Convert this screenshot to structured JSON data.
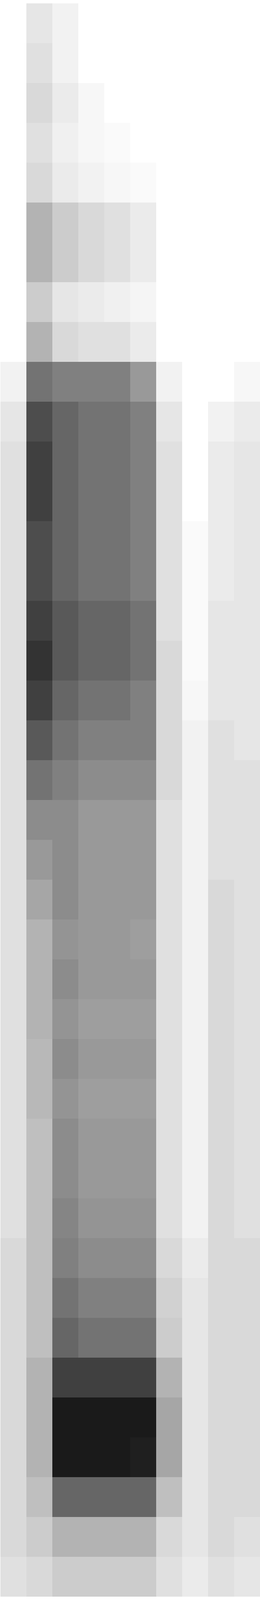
{
  "chart_data": {
    "type": "heatmap",
    "tick_labels": false,
    "value_range": [
      0,
      1
    ],
    "cells": [
      [
        0,
        0.1,
        0.05,
        0,
        0,
        0,
        0,
        0,
        0,
        0
      ],
      [
        0,
        0.12,
        0.05,
        0,
        0,
        0,
        0,
        0,
        0,
        0
      ],
      [
        0,
        0.15,
        0.08,
        0.03,
        0,
        0,
        0,
        0,
        0,
        0
      ],
      [
        0,
        0.12,
        0.06,
        0.03,
        0.02,
        0,
        0,
        0,
        0,
        0
      ],
      [
        0,
        0.15,
        0.08,
        0.05,
        0.03,
        0.02,
        0,
        0,
        0,
        0
      ],
      [
        0,
        0.3,
        0.2,
        0.15,
        0.12,
        0.08,
        0,
        0,
        0,
        0
      ],
      [
        0,
        0.3,
        0.2,
        0.15,
        0.12,
        0.08,
        0,
        0,
        0,
        0
      ],
      [
        0,
        0.2,
        0.1,
        0.08,
        0.06,
        0.04,
        0,
        0,
        0,
        0
      ],
      [
        0,
        0.3,
        0.15,
        0.12,
        0.12,
        0.08,
        0,
        0,
        0,
        0
      ],
      [
        0.05,
        0.55,
        0.5,
        0.5,
        0.5,
        0.4,
        0.05,
        0,
        0,
        0.03
      ],
      [
        0.1,
        0.7,
        0.6,
        0.55,
        0.55,
        0.5,
        0.1,
        0,
        0.05,
        0.08
      ],
      [
        0.12,
        0.75,
        0.6,
        0.55,
        0.55,
        0.5,
        0.12,
        0,
        0.08,
        0.1
      ],
      [
        0.12,
        0.75,
        0.6,
        0.55,
        0.55,
        0.5,
        0.12,
        0,
        0.08,
        0.1
      ],
      [
        0.12,
        0.7,
        0.6,
        0.55,
        0.55,
        0.5,
        0.12,
        0.02,
        0.08,
        0.1
      ],
      [
        0.12,
        0.7,
        0.6,
        0.55,
        0.55,
        0.5,
        0.12,
        0.02,
        0.08,
        0.1
      ],
      [
        0.12,
        0.75,
        0.65,
        0.6,
        0.6,
        0.55,
        0.12,
        0.02,
        0.1,
        0.1
      ],
      [
        0.12,
        0.8,
        0.65,
        0.6,
        0.6,
        0.55,
        0.15,
        0.02,
        0.1,
        0.1
      ],
      [
        0.12,
        0.75,
        0.6,
        0.55,
        0.55,
        0.5,
        0.15,
        0.03,
        0.1,
        0.1
      ],
      [
        0.12,
        0.65,
        0.55,
        0.5,
        0.5,
        0.5,
        0.15,
        0.05,
        0.12,
        0.1
      ],
      [
        0.12,
        0.55,
        0.5,
        0.45,
        0.45,
        0.45,
        0.15,
        0.05,
        0.12,
        0.12
      ],
      [
        0.12,
        0.45,
        0.45,
        0.4,
        0.4,
        0.4,
        0.12,
        0.05,
        0.12,
        0.12
      ],
      [
        0.12,
        0.4,
        0.45,
        0.4,
        0.4,
        0.4,
        0.12,
        0.05,
        0.12,
        0.12
      ],
      [
        0.12,
        0.35,
        0.45,
        0.4,
        0.4,
        0.4,
        0.12,
        0.05,
        0.15,
        0.12
      ],
      [
        0.12,
        0.3,
        0.42,
        0.4,
        0.4,
        0.38,
        0.12,
        0.05,
        0.15,
        0.12
      ],
      [
        0.12,
        0.3,
        0.45,
        0.4,
        0.4,
        0.4,
        0.12,
        0.05,
        0.15,
        0.12
      ],
      [
        0.12,
        0.3,
        0.42,
        0.38,
        0.38,
        0.38,
        0.12,
        0.05,
        0.15,
        0.12
      ],
      [
        0.12,
        0.28,
        0.45,
        0.4,
        0.4,
        0.4,
        0.12,
        0.05,
        0.15,
        0.12
      ],
      [
        0.12,
        0.28,
        0.42,
        0.38,
        0.38,
        0.38,
        0.12,
        0.05,
        0.15,
        0.12
      ],
      [
        0.12,
        0.25,
        0.45,
        0.4,
        0.4,
        0.4,
        0.12,
        0.05,
        0.15,
        0.12
      ],
      [
        0.12,
        0.25,
        0.45,
        0.4,
        0.4,
        0.4,
        0.12,
        0.05,
        0.15,
        0.12
      ],
      [
        0.12,
        0.25,
        0.48,
        0.42,
        0.42,
        0.42,
        0.12,
        0.05,
        0.15,
        0.12
      ],
      [
        0.15,
        0.25,
        0.5,
        0.45,
        0.45,
        0.45,
        0.15,
        0.08,
        0.15,
        0.15
      ],
      [
        0.15,
        0.25,
        0.55,
        0.5,
        0.5,
        0.5,
        0.18,
        0.1,
        0.15,
        0.15
      ],
      [
        0.15,
        0.25,
        0.6,
        0.55,
        0.55,
        0.55,
        0.2,
        0.1,
        0.15,
        0.15
      ],
      [
        0.15,
        0.3,
        0.75,
        0.75,
        0.75,
        0.75,
        0.3,
        0.1,
        0.15,
        0.15
      ],
      [
        0.15,
        0.3,
        0.9,
        0.9,
        0.9,
        0.9,
        0.35,
        0.1,
        0.15,
        0.15
      ],
      [
        0.15,
        0.3,
        0.9,
        0.9,
        0.9,
        0.88,
        0.35,
        0.1,
        0.15,
        0.15
      ],
      [
        0.15,
        0.25,
        0.6,
        0.6,
        0.6,
        0.6,
        0.25,
        0.1,
        0.15,
        0.15
      ],
      [
        0.15,
        0.2,
        0.3,
        0.3,
        0.3,
        0.3,
        0.15,
        0.1,
        0.15,
        0.12
      ],
      [
        0.12,
        0.15,
        0.2,
        0.2,
        0.2,
        0.2,
        0.12,
        0.08,
        0.12,
        0.1
      ]
    ]
  }
}
